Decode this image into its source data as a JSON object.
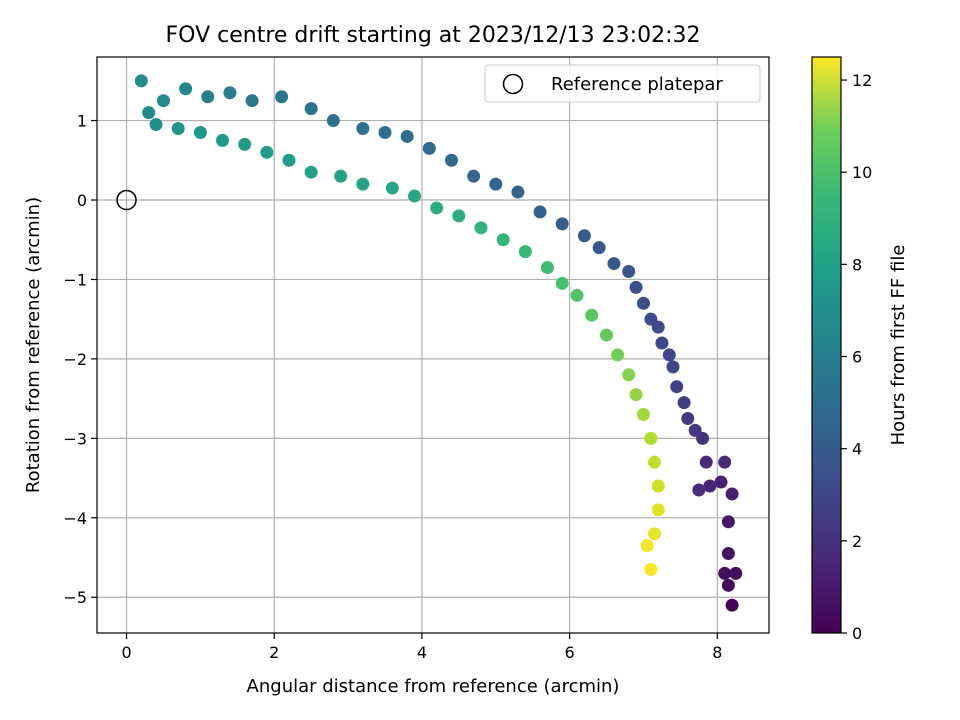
{
  "chart_data": {
    "type": "scatter",
    "title": "FOV centre drift starting at 2023/12/13 23:02:32",
    "xlabel": "Angular distance from reference (arcmin)",
    "ylabel": "Rotation from reference (arcmin)",
    "xlim": [
      -0.4,
      8.7
    ],
    "ylim": [
      -5.45,
      1.8
    ],
    "xticks": [
      "0",
      "2",
      "4",
      "6",
      "8"
    ],
    "yticks": [
      "−5",
      "−4",
      "−3",
      "−2",
      "−1",
      "0",
      "1"
    ],
    "grid": true,
    "legend": {
      "position": "top-right",
      "entries": [
        "Reference platepar"
      ]
    },
    "reference_point": {
      "x": 0,
      "y": 0,
      "label": "Reference platepar"
    },
    "colorbar": {
      "label": "Hours from first FF file",
      "range": [
        0,
        12.5
      ],
      "ticks": [
        "0",
        "2",
        "4",
        "6",
        "8",
        "10",
        "12"
      ],
      "colormap": "viridis"
    },
    "series": [
      {
        "color_by": "hours",
        "points": [
          {
            "x": 8.2,
            "y": -5.1,
            "h": 0.1
          },
          {
            "x": 8.15,
            "y": -4.85,
            "h": 0.3
          },
          {
            "x": 8.25,
            "y": -4.7,
            "h": 0.4
          },
          {
            "x": 8.15,
            "y": -4.45,
            "h": 0.6
          },
          {
            "x": 8.1,
            "y": -4.7,
            "h": 0.5
          },
          {
            "x": 8.15,
            "y": -4.05,
            "h": 0.8
          },
          {
            "x": 8.2,
            "y": -3.7,
            "h": 1.0
          },
          {
            "x": 8.05,
            "y": -3.55,
            "h": 1.2
          },
          {
            "x": 8.1,
            "y": -3.3,
            "h": 1.4
          },
          {
            "x": 7.9,
            "y": -3.6,
            "h": 1.3
          },
          {
            "x": 7.85,
            "y": -3.3,
            "h": 1.5
          },
          {
            "x": 7.75,
            "y": -3.65,
            "h": 1.6
          },
          {
            "x": 7.8,
            "y": -3.0,
            "h": 1.8
          },
          {
            "x": 7.7,
            "y": -2.9,
            "h": 2.0
          },
          {
            "x": 7.6,
            "y": -2.75,
            "h": 2.1
          },
          {
            "x": 7.55,
            "y": -2.55,
            "h": 2.3
          },
          {
            "x": 7.45,
            "y": -2.35,
            "h": 2.4
          },
          {
            "x": 7.4,
            "y": -2.1,
            "h": 2.6
          },
          {
            "x": 7.35,
            "y": -1.95,
            "h": 2.7
          },
          {
            "x": 7.25,
            "y": -1.8,
            "h": 2.8
          },
          {
            "x": 7.2,
            "y": -1.6,
            "h": 2.9
          },
          {
            "x": 7.1,
            "y": -1.5,
            "h": 3.0
          },
          {
            "x": 7.0,
            "y": -1.3,
            "h": 3.1
          },
          {
            "x": 6.9,
            "y": -1.1,
            "h": 3.2
          },
          {
            "x": 6.8,
            "y": -0.9,
            "h": 3.3
          },
          {
            "x": 6.6,
            "y": -0.8,
            "h": 3.4
          },
          {
            "x": 6.4,
            "y": -0.6,
            "h": 3.5
          },
          {
            "x": 6.2,
            "y": -0.45,
            "h": 3.6
          },
          {
            "x": 5.9,
            "y": -0.3,
            "h": 3.7
          },
          {
            "x": 5.6,
            "y": -0.15,
            "h": 3.8
          },
          {
            "x": 5.3,
            "y": 0.1,
            "h": 3.9
          },
          {
            "x": 5.0,
            "y": 0.2,
            "h": 4.0
          },
          {
            "x": 4.7,
            "y": 0.3,
            "h": 4.1
          },
          {
            "x": 4.4,
            "y": 0.5,
            "h": 4.2
          },
          {
            "x": 4.1,
            "y": 0.65,
            "h": 4.3
          },
          {
            "x": 3.8,
            "y": 0.8,
            "h": 4.4
          },
          {
            "x": 3.5,
            "y": 0.85,
            "h": 4.5
          },
          {
            "x": 3.2,
            "y": 0.9,
            "h": 4.6
          },
          {
            "x": 2.8,
            "y": 1.0,
            "h": 4.7
          },
          {
            "x": 2.5,
            "y": 1.15,
            "h": 4.8
          },
          {
            "x": 2.1,
            "y": 1.3,
            "h": 5.0
          },
          {
            "x": 1.7,
            "y": 1.25,
            "h": 5.1
          },
          {
            "x": 1.4,
            "y": 1.35,
            "h": 5.3
          },
          {
            "x": 1.1,
            "y": 1.3,
            "h": 5.5
          },
          {
            "x": 0.8,
            "y": 1.4,
            "h": 5.7
          },
          {
            "x": 0.5,
            "y": 1.25,
            "h": 5.9
          },
          {
            "x": 0.3,
            "y": 1.1,
            "h": 6.0
          },
          {
            "x": 0.2,
            "y": 1.5,
            "h": 6.2
          },
          {
            "x": 0.4,
            "y": 0.95,
            "h": 6.3
          },
          {
            "x": 0.7,
            "y": 0.9,
            "h": 6.5
          },
          {
            "x": 1.0,
            "y": 0.85,
            "h": 6.6
          },
          {
            "x": 1.3,
            "y": 0.75,
            "h": 6.7
          },
          {
            "x": 1.6,
            "y": 0.7,
            "h": 6.8
          },
          {
            "x": 1.9,
            "y": 0.6,
            "h": 6.9
          },
          {
            "x": 2.2,
            "y": 0.5,
            "h": 7.0
          },
          {
            "x": 2.5,
            "y": 0.35,
            "h": 7.1
          },
          {
            "x": 2.9,
            "y": 0.3,
            "h": 7.2
          },
          {
            "x": 3.2,
            "y": 0.2,
            "h": 7.3
          },
          {
            "x": 3.6,
            "y": 0.15,
            "h": 7.4
          },
          {
            "x": 3.9,
            "y": 0.05,
            "h": 7.5
          },
          {
            "x": 4.2,
            "y": -0.1,
            "h": 7.7
          },
          {
            "x": 4.5,
            "y": -0.2,
            "h": 7.8
          },
          {
            "x": 4.8,
            "y": -0.35,
            "h": 8.0
          },
          {
            "x": 5.1,
            "y": -0.5,
            "h": 8.2
          },
          {
            "x": 5.4,
            "y": -0.65,
            "h": 8.4
          },
          {
            "x": 5.7,
            "y": -0.85,
            "h": 8.6
          },
          {
            "x": 5.9,
            "y": -1.05,
            "h": 8.8
          },
          {
            "x": 6.1,
            "y": -1.2,
            "h": 9.0
          },
          {
            "x": 6.3,
            "y": -1.45,
            "h": 9.2
          },
          {
            "x": 6.5,
            "y": -1.7,
            "h": 9.5
          },
          {
            "x": 6.65,
            "y": -1.95,
            "h": 9.8
          },
          {
            "x": 6.8,
            "y": -2.2,
            "h": 10.1
          },
          {
            "x": 6.9,
            "y": -2.45,
            "h": 10.4
          },
          {
            "x": 7.0,
            "y": -2.7,
            "h": 10.7
          },
          {
            "x": 7.1,
            "y": -3.0,
            "h": 11.0
          },
          {
            "x": 7.15,
            "y": -3.3,
            "h": 11.3
          },
          {
            "x": 7.2,
            "y": -3.6,
            "h": 11.6
          },
          {
            "x": 7.2,
            "y": -3.9,
            "h": 11.9
          },
          {
            "x": 7.15,
            "y": -4.2,
            "h": 12.1
          },
          {
            "x": 7.05,
            "y": -4.35,
            "h": 12.3
          },
          {
            "x": 7.1,
            "y": -4.65,
            "h": 12.4
          }
        ]
      }
    ]
  }
}
